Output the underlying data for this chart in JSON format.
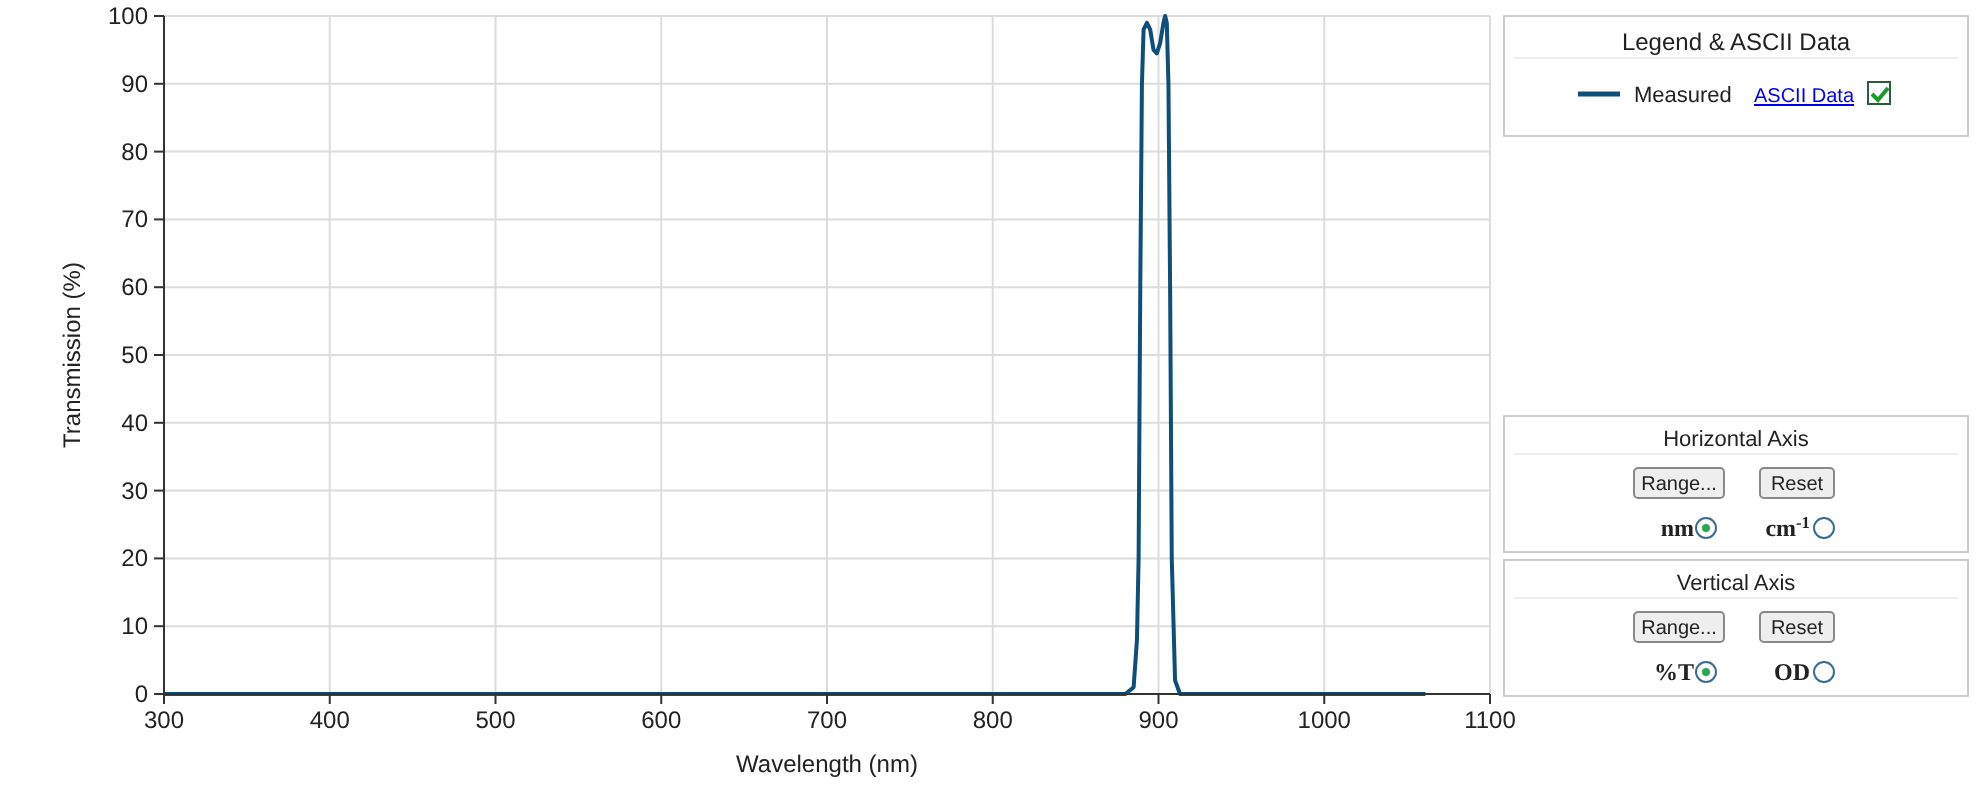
{
  "chart_data": {
    "type": "line",
    "xlabel": "Wavelength (nm)",
    "ylabel": "Transmission (%)",
    "xlim": [
      300,
      1100
    ],
    "xticks": [
      300,
      400,
      500,
      600,
      700,
      800,
      900,
      1000,
      1100
    ],
    "ylim": [
      0,
      100
    ],
    "yticks": [
      0,
      10,
      20,
      30,
      40,
      50,
      60,
      70,
      80,
      90,
      100
    ],
    "grid": true,
    "legend": "top right",
    "line_style": "solid",
    "marker": "none",
    "series": [
      {
        "name": "Measured",
        "color": "#0d4f7c",
        "x": [
          300,
          500,
          700,
          850,
          880,
          885,
          887,
          888,
          889,
          890,
          891,
          893,
          895,
          897,
          899,
          901,
          903,
          904,
          905,
          906,
          907,
          908,
          910,
          913,
          950,
          1000,
          1061
        ],
        "values": [
          0,
          0,
          0,
          0,
          0,
          1,
          8,
          20,
          60,
          90,
          98,
          99,
          98,
          95,
          94.5,
          96,
          99,
          100,
          99,
          90,
          60,
          20,
          2,
          0,
          0,
          0,
          0
        ]
      }
    ],
    "annotations": [
      "Legend & ASCII Data",
      "ASCII Data",
      "Horizontal Axis",
      "Range...",
      "Reset",
      "nm",
      "cm$^{-1}$",
      "Vertical Axis",
      "Range...",
      "Reset",
      "%T",
      "OD"
    ]
  }
}
